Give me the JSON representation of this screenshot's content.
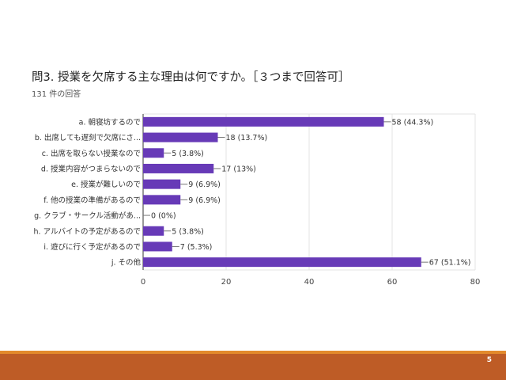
{
  "slide": {
    "page_number": "5",
    "footer_line_color": "#E38A2C",
    "footer_band_color": "#BE5C26"
  },
  "chart_data": {
    "type": "bar",
    "orientation": "horizontal",
    "title": "問3. 授業を欠席する主な理由は何ですか。［３つまで回答可］",
    "subtitle": "131 件の回答",
    "categories": [
      "a. 朝寝坊するので",
      "b. 出席しても遅刻で欠席にさ...",
      "c. 出席を取らない授業なので",
      "d. 授業内容がつまらないので",
      "e. 授業が難しいので",
      "f. 他の授業の準備があるので",
      "g. クラブ・サークル活動があ...",
      "h. アルバイトの予定があるので",
      "i. 遊びに行く予定があるので",
      "j. その他"
    ],
    "values": [
      58,
      18,
      5,
      17,
      9,
      9,
      0,
      5,
      7,
      67
    ],
    "data_labels": [
      "58 (44.3%)",
      "18 (13.7%)",
      "5 (3.8%)",
      "17 (13%)",
      "9 (6.9%)",
      "9 (6.9%)",
      "0 (0%)",
      "5 (3.8%)",
      "7 (5.3%)",
      "67 (51.1%)"
    ],
    "xlim": [
      0,
      80
    ],
    "xticks": [
      0,
      20,
      40,
      60,
      80
    ],
    "xtick_labels": [
      "0",
      "20",
      "40",
      "60",
      "80"
    ],
    "bar_color": "#673AB7",
    "grid": true
  }
}
